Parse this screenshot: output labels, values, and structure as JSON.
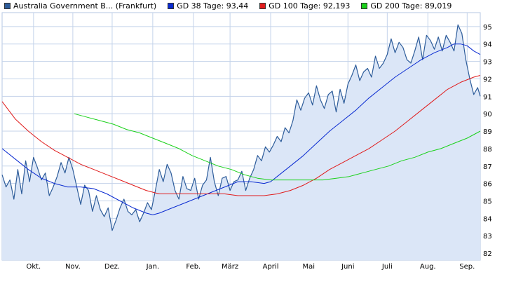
{
  "legend": [
    {
      "label": "Australia Government B... (Frankfurt)",
      "color": "#2d5c9a"
    },
    {
      "label": "GD 38 Tage: 93,44",
      "color": "#0a2bd1"
    },
    {
      "label": "GD 100 Tage: 92,193",
      "color": "#e01b1b"
    },
    {
      "label": "GD 200 Tage: 89,019",
      "color": "#1bd11b"
    }
  ],
  "chart_data": {
    "type": "line",
    "title": "",
    "xlabel": "",
    "ylabel": "",
    "ylim": [
      81.6,
      95.8
    ],
    "xlim": [
      0,
      365
    ],
    "yticks": [
      82,
      83,
      84,
      85,
      86,
      87,
      88,
      89,
      90,
      91,
      92,
      93,
      94,
      95
    ],
    "xticks": [
      {
        "label": "Okt.",
        "day": 24
      },
      {
        "label": "Nov.",
        "day": 54
      },
      {
        "label": "Dez.",
        "day": 84
      },
      {
        "label": "Jan.",
        "day": 115
      },
      {
        "label": "Feb.",
        "day": 146
      },
      {
        "label": "März",
        "day": 174
      },
      {
        "label": "April",
        "day": 205
      },
      {
        "label": "Mai",
        "day": 234
      },
      {
        "label": "Juni",
        "day": 264
      },
      {
        "label": "Juli",
        "day": 294
      },
      {
        "label": "Aug.",
        "day": 325
      },
      {
        "label": "Sep.",
        "day": 355
      }
    ],
    "grid": true,
    "legend_position": "top-left",
    "series": [
      {
        "name": "Australia Government B... (Frankfurt)",
        "color": "#2d5c9a",
        "fill": "#dbe6f7",
        "x": [
          0,
          3,
          6,
          9,
          12,
          15,
          18,
          21,
          24,
          27,
          30,
          33,
          36,
          39,
          42,
          45,
          48,
          51,
          54,
          57,
          60,
          63,
          66,
          69,
          72,
          75,
          78,
          81,
          84,
          87,
          90,
          93,
          96,
          99,
          102,
          105,
          108,
          111,
          114,
          117,
          120,
          123,
          126,
          129,
          132,
          135,
          138,
          141,
          144,
          147,
          150,
          153,
          156,
          159,
          162,
          165,
          168,
          171,
          174,
          177,
          180,
          183,
          186,
          189,
          192,
          195,
          198,
          201,
          204,
          207,
          210,
          213,
          216,
          219,
          222,
          225,
          228,
          231,
          234,
          237,
          240,
          243,
          246,
          249,
          252,
          255,
          258,
          261,
          264,
          267,
          270,
          273,
          276,
          279,
          282,
          285,
          288,
          291,
          294,
          297,
          300,
          303,
          306,
          309,
          312,
          315,
          318,
          321,
          324,
          327,
          330,
          333,
          336,
          339,
          342,
          345,
          348,
          351,
          354,
          357,
          360,
          363,
          365
        ],
        "values": [
          86.5,
          85.8,
          86.2,
          85.1,
          86.8,
          85.4,
          87.3,
          86.1,
          87.5,
          86.9,
          86.2,
          86.6,
          85.3,
          85.8,
          86.4,
          87.2,
          86.6,
          87.5,
          86.8,
          85.8,
          84.8,
          85.9,
          85.6,
          84.4,
          85.3,
          84.5,
          84.1,
          84.6,
          83.3,
          83.9,
          84.6,
          85.1,
          84.4,
          84.2,
          84.5,
          83.8,
          84.3,
          84.9,
          84.5,
          85.6,
          86.8,
          86.1,
          87.1,
          86.6,
          85.6,
          85.1,
          86.4,
          85.7,
          85.6,
          86.3,
          85.1,
          85.9,
          86.2,
          87.5,
          86.1,
          85.3,
          86.3,
          86.4,
          85.6,
          86.1,
          86.2,
          86.7,
          85.6,
          86.3,
          86.8,
          87.6,
          87.3,
          88.1,
          87.8,
          88.2,
          88.7,
          88.4,
          89.2,
          88.9,
          89.6,
          90.8,
          90.2,
          90.9,
          91.2,
          90.5,
          91.6,
          90.8,
          90.3,
          91.1,
          91.3,
          90.1,
          91.4,
          90.6,
          91.7,
          92.2,
          92.8,
          91.9,
          92.4,
          92.6,
          92.1,
          93.3,
          92.6,
          92.9,
          93.4,
          94.3,
          93.5,
          94.1,
          93.8,
          93.1,
          92.9,
          93.6,
          94.4,
          93.1,
          94.5,
          94.2,
          93.7,
          94.4,
          93.6,
          94.5,
          94.1,
          93.6,
          95.1,
          94.6,
          93.1,
          92.0,
          91.1,
          91.5,
          91.0
        ]
      },
      {
        "name": "GD 38 Tage: 93,44",
        "color": "#0a2bd1",
        "x": [
          0,
          10,
          20,
          30,
          40,
          50,
          60,
          70,
          80,
          90,
          100,
          110,
          115,
          120,
          130,
          140,
          150,
          160,
          170,
          180,
          190,
          200,
          205,
          210,
          220,
          230,
          240,
          250,
          260,
          270,
          280,
          290,
          300,
          310,
          320,
          330,
          340,
          345,
          350,
          355,
          360,
          365
        ],
        "values": [
          88.0,
          87.4,
          86.8,
          86.3,
          86.0,
          85.8,
          85.8,
          85.7,
          85.4,
          85.0,
          84.6,
          84.3,
          84.2,
          84.3,
          84.6,
          84.9,
          85.2,
          85.5,
          85.8,
          86.1,
          86.1,
          86.0,
          86.1,
          86.4,
          87.0,
          87.6,
          88.3,
          89.0,
          89.6,
          90.2,
          90.9,
          91.5,
          92.1,
          92.6,
          93.1,
          93.5,
          93.8,
          94.0,
          94.0,
          93.9,
          93.6,
          93.4
        ]
      },
      {
        "name": "GD 100 Tage: 92,193",
        "color": "#e01b1b",
        "x": [
          0,
          10,
          20,
          30,
          40,
          50,
          60,
          70,
          80,
          90,
          100,
          110,
          120,
          130,
          140,
          150,
          160,
          170,
          180,
          190,
          200,
          210,
          220,
          230,
          240,
          250,
          260,
          270,
          280,
          290,
          300,
          310,
          320,
          330,
          340,
          350,
          360,
          365
        ],
        "values": [
          90.7,
          89.7,
          89.0,
          88.4,
          87.9,
          87.5,
          87.1,
          86.8,
          86.5,
          86.2,
          85.9,
          85.6,
          85.4,
          85.4,
          85.4,
          85.4,
          85.4,
          85.4,
          85.3,
          85.3,
          85.3,
          85.4,
          85.6,
          85.9,
          86.3,
          86.8,
          87.2,
          87.6,
          88.0,
          88.5,
          89.0,
          89.6,
          90.2,
          90.8,
          91.4,
          91.8,
          92.1,
          92.2
        ]
      },
      {
        "name": "GD 200 Tage: 89,019",
        "color": "#1bd11b",
        "x": [
          55,
          65,
          75,
          85,
          95,
          105,
          115,
          125,
          135,
          145,
          155,
          165,
          175,
          185,
          195,
          205,
          215,
          225,
          235,
          245,
          255,
          265,
          275,
          285,
          295,
          305,
          315,
          325,
          335,
          345,
          355,
          365
        ],
        "values": [
          90.0,
          89.8,
          89.6,
          89.4,
          89.1,
          88.9,
          88.6,
          88.3,
          88.0,
          87.6,
          87.3,
          87.0,
          86.8,
          86.5,
          86.3,
          86.2,
          86.2,
          86.2,
          86.2,
          86.2,
          86.3,
          86.4,
          86.6,
          86.8,
          87.0,
          87.3,
          87.5,
          87.8,
          88.0,
          88.3,
          88.6,
          89.0
        ]
      }
    ]
  }
}
